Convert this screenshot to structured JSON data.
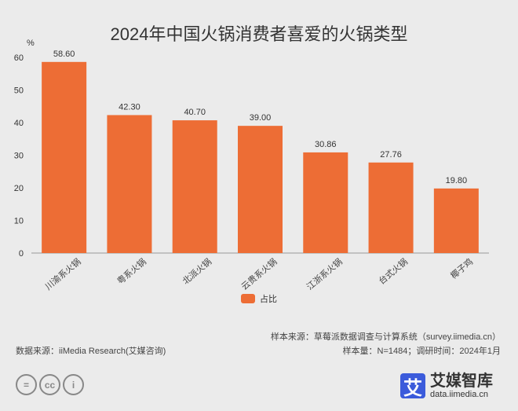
{
  "chart_data": {
    "type": "bar",
    "title": "2024年中国火锅消费者喜爱的火锅类型",
    "ylabel": "%",
    "ylim": [
      0,
      60
    ],
    "yticks": [
      0,
      10,
      20,
      30,
      40,
      50,
      60
    ],
    "categories": [
      "川渝系火锅",
      "粤系火锅",
      "北派火锅",
      "云贵系火锅",
      "江浙系火锅",
      "台式火锅",
      "椰子鸡"
    ],
    "series": [
      {
        "name": "占比",
        "values": [
          58.6,
          42.3,
          40.7,
          39.0,
          30.86,
          27.76,
          19.8
        ],
        "color": "#ed6d35"
      }
    ],
    "data_labels": [
      "58.60",
      "42.30",
      "40.70",
      "39.00",
      "30.86",
      "27.76",
      "19.80"
    ],
    "legend": "bottom-center",
    "grid": false
  },
  "footer": {
    "sample_source": "样本来源：草莓派数据调查与计算系统（survey.iimedia.cn）",
    "sample_info": "样本量：N=1484；调研时间：2024年1月",
    "data_source": "数据来源：iiMedia Research(艾媒咨询)"
  },
  "logo": {
    "mark": "艾",
    "name": "艾媒智库",
    "url": "data.iimedia.cn"
  },
  "license_icons": [
    "nd-icon",
    "cc-icon",
    "by-icon"
  ]
}
